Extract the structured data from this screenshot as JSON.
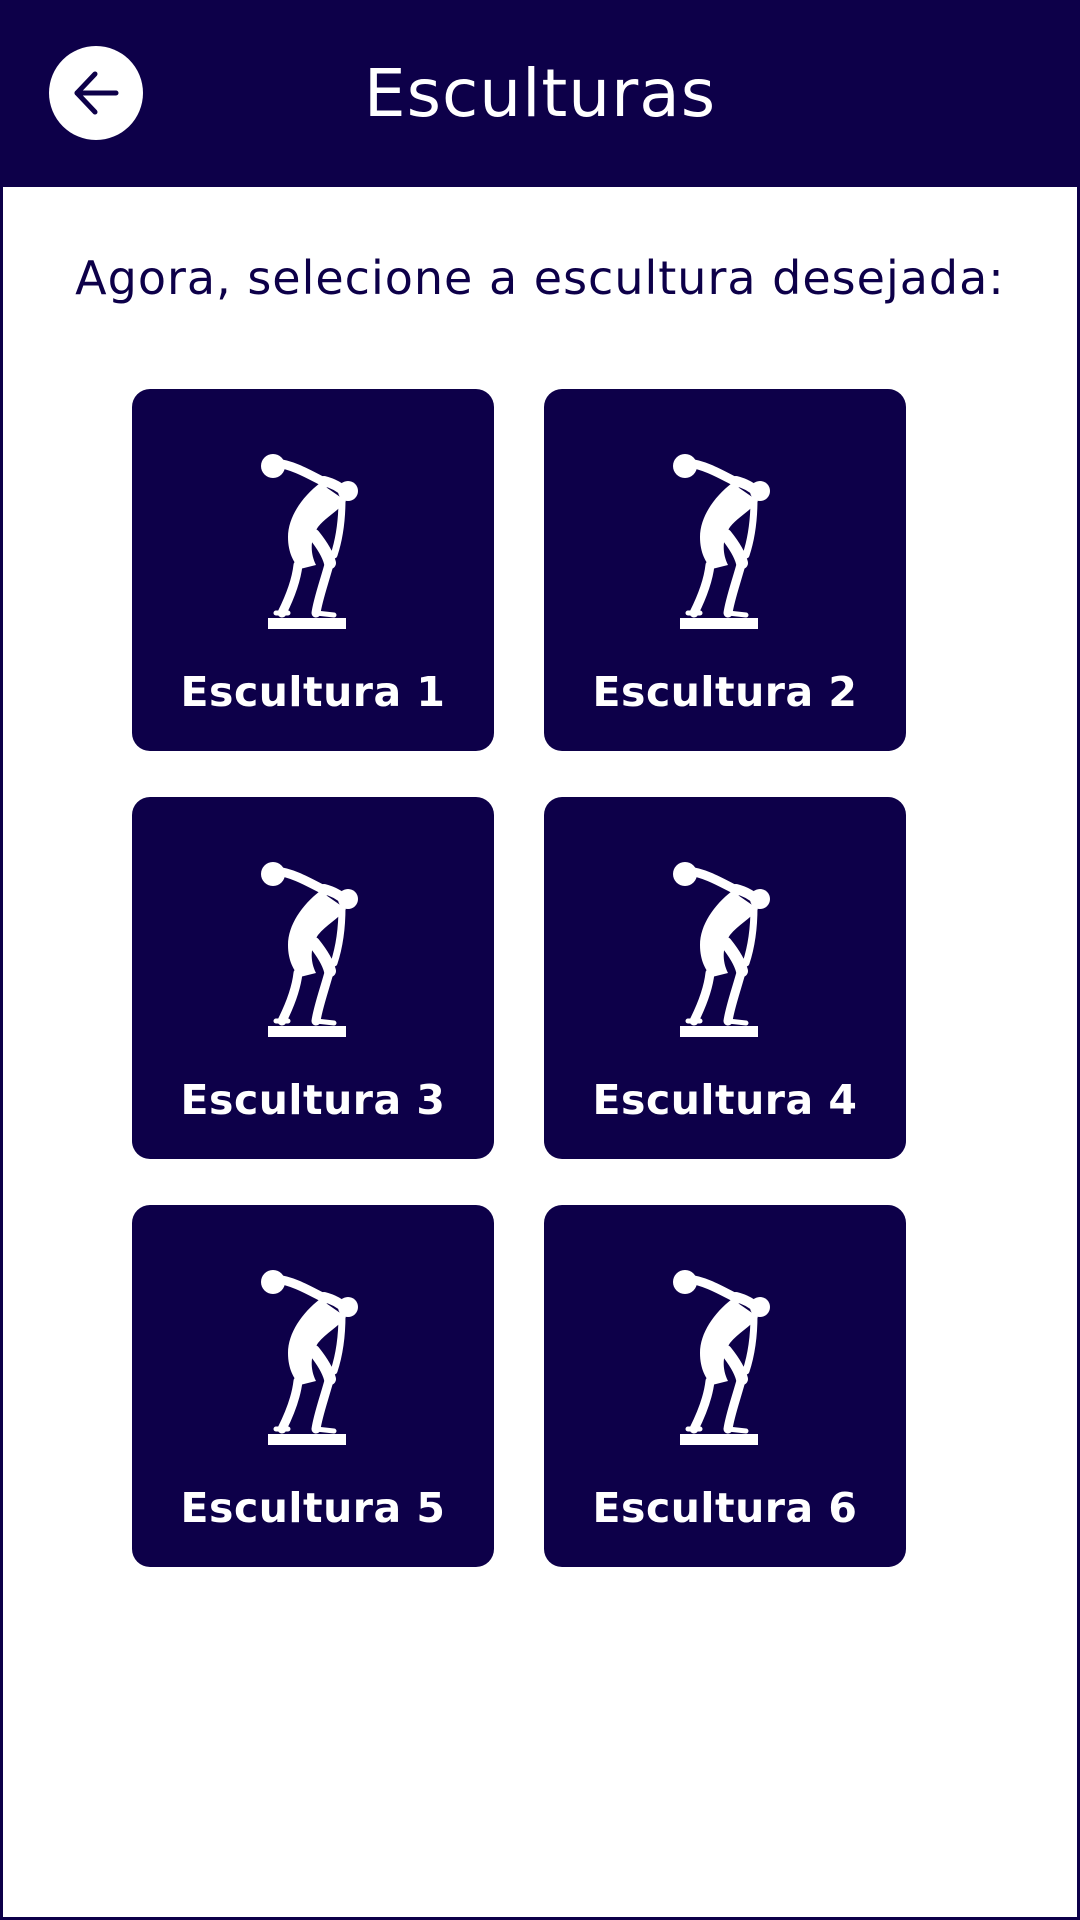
{
  "header": {
    "title": "Esculturas",
    "back_icon": "arrow-left-icon"
  },
  "main": {
    "instruction": "Agora, selecione a escultura desejada:",
    "cards": [
      {
        "label": "Escultura 1",
        "icon": "discobolus-statue-icon"
      },
      {
        "label": "Escultura 2",
        "icon": "discobolus-statue-icon"
      },
      {
        "label": "Escultura 3",
        "icon": "discobolus-statue-icon"
      },
      {
        "label": "Escultura 4",
        "icon": "discobolus-statue-icon"
      },
      {
        "label": "Escultura 5",
        "icon": "discobolus-statue-icon"
      },
      {
        "label": "Escultura 6",
        "icon": "discobolus-statue-icon"
      }
    ]
  },
  "colors": {
    "primary": "#0d0049",
    "on_primary": "#ffffff",
    "background": "#ffffff"
  }
}
